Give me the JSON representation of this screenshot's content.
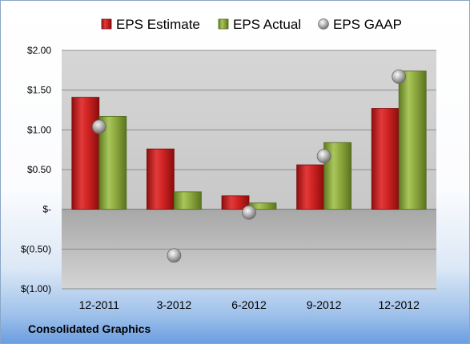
{
  "chart_data": {
    "type": "bar",
    "categories": [
      "12-2011",
      "3-2012",
      "6-2012",
      "9-2012",
      "12-2012"
    ],
    "series": [
      {
        "name": "EPS Estimate",
        "kind": "bar",
        "color": "#cc1f1f",
        "values": [
          1.41,
          0.76,
          0.17,
          0.56,
          1.27
        ]
      },
      {
        "name": "EPS Actual",
        "kind": "bar",
        "color": "#8aaa3c",
        "values": [
          1.17,
          0.22,
          0.08,
          0.84,
          1.74
        ]
      },
      {
        "name": "EPS GAAP",
        "kind": "scatter",
        "color": "#a9a9a9",
        "values": [
          1.04,
          -0.58,
          -0.04,
          0.67,
          1.67
        ]
      }
    ],
    "ylim": [
      -1.0,
      2.0
    ],
    "yticks": [
      {
        "value": 2.0,
        "label": "$2.00"
      },
      {
        "value": 1.5,
        "label": "$1.50"
      },
      {
        "value": 1.0,
        "label": "$1.00"
      },
      {
        "value": 0.5,
        "label": "$0.50"
      },
      {
        "value": 0.0,
        "label": "$-"
      },
      {
        "value": -0.5,
        "label": "$(0.50)"
      },
      {
        "value": -1.0,
        "label": "$(1.00)"
      }
    ],
    "grid": true,
    "legend_position": "top"
  },
  "footer": {
    "company": "Consolidated Graphics"
  }
}
